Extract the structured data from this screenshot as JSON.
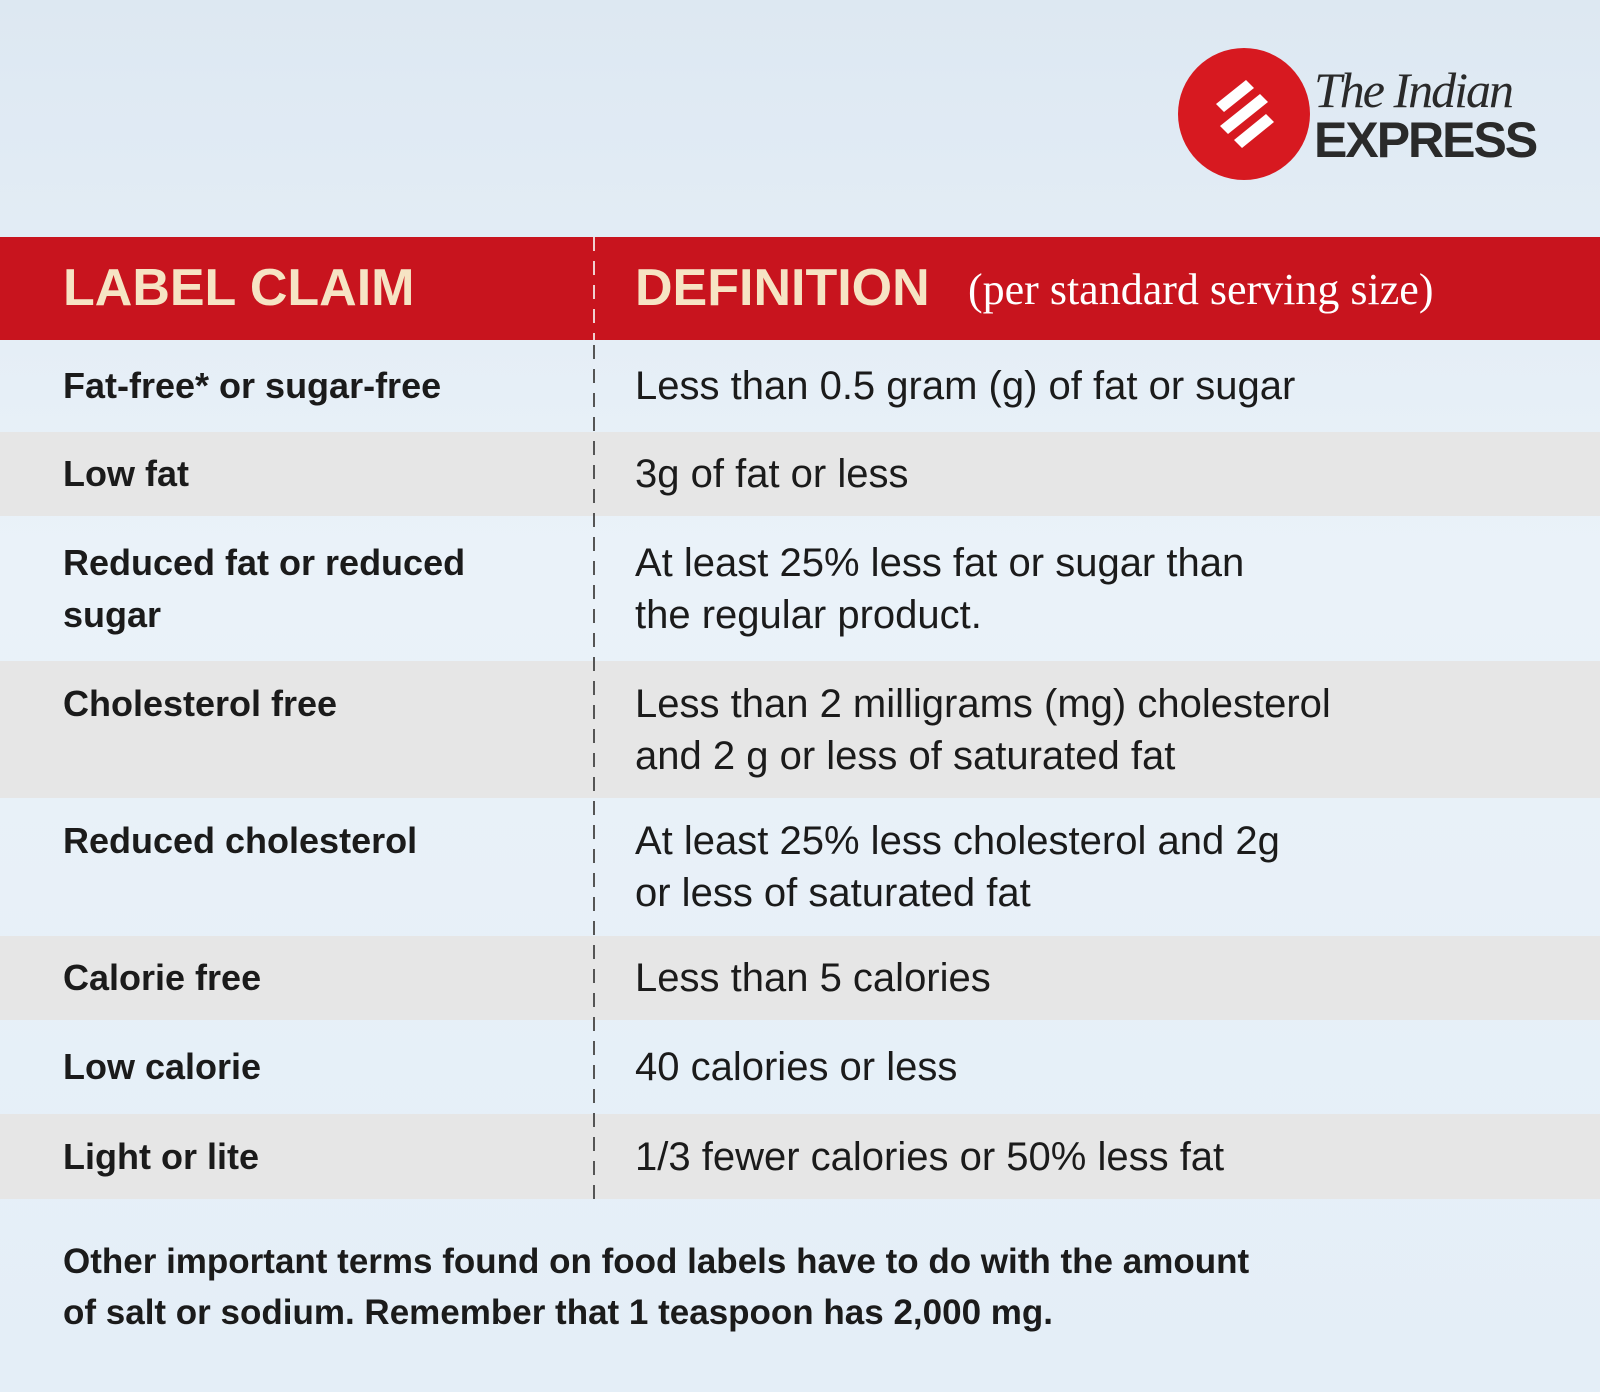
{
  "logo": {
    "line1": "The Indian",
    "line2": "EXPRESS"
  },
  "table": {
    "header": [
      "LABEL CLAIM",
      "DEFINITION",
      "(per standard serving size)"
    ],
    "rows": [
      [
        [
          "Fat-free* or sugar-free"
        ],
        [
          "Less than 0.5 gram (g) of fat or sugar"
        ]
      ],
      [
        [
          "Low fat"
        ],
        [
          "3g of fat or less"
        ]
      ],
      [
        [
          "Reduced fat or reduced",
          "sugar"
        ],
        [
          "At least 25% less fat or sugar than",
          "the regular product."
        ]
      ],
      [
        [
          "Cholesterol free"
        ],
        [
          "Less than 2 milligrams (mg) cholesterol",
          "and 2 g or less of saturated fat"
        ]
      ],
      [
        [
          "Reduced cholesterol"
        ],
        [
          "At least 25% less cholesterol and 2g",
          "or less of saturated fat"
        ]
      ],
      [
        [
          "Calorie free"
        ],
        [
          "Less than 5 calories"
        ]
      ],
      [
        [
          "Low calorie"
        ],
        [
          "40 calories or less"
        ]
      ],
      [
        [
          "Light or lite"
        ],
        [
          "1/3 fewer calories or 50% less fat"
        ]
      ]
    ]
  },
  "footer": [
    "Other important terms found on food labels have to do with the amount",
    "of salt or sodium. Remember that 1 teaspoon has 2,000 mg."
  ]
}
